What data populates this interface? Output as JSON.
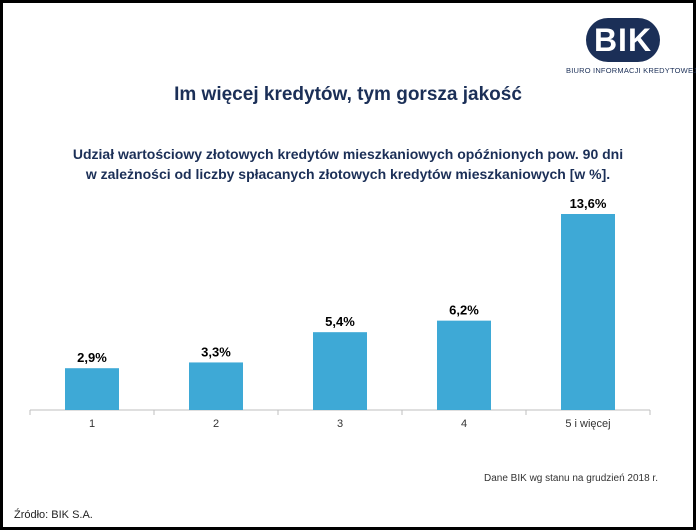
{
  "logo": {
    "text": "BIK",
    "subtitle": "BIURO INFORMACJI KREDYTOWEJ"
  },
  "headline": "Im więcej kredytów, tym gorsza jakość",
  "subtitle_line1": "Udział wartościowy złotowych kredytów mieszkaniowych opóźnionych pow. 90 dni",
  "subtitle_line2": "w zależności od liczby spłacanych złotowych kredytów mieszkaniowych [w %].",
  "note": "Dane BIK wg stanu na grudzień 2018 r.",
  "source": "Źródło: BIK S.A.",
  "colors": {
    "bar": "#3ea9d6",
    "brand": "#1b2f57",
    "axis": "#bfbfbf"
  },
  "chart_data": {
    "type": "bar",
    "title": "Udział wartościowy złotowych kredytów mieszkaniowych opóźnionych pow. 90 dni w zależności od liczby spłacanych złotowych kredytów mieszkaniowych [w %].",
    "categories": [
      "1",
      "2",
      "3",
      "4",
      "5 i więcej"
    ],
    "values": [
      2.9,
      3.3,
      5.4,
      6.2,
      13.6
    ],
    "data_labels": [
      "2,9%",
      "3,3%",
      "5,4%",
      "6,2%",
      "13,6%"
    ],
    "xlabel": "",
    "ylabel": "",
    "ylim": [
      0,
      13.6
    ],
    "grid": false,
    "legend": "none"
  }
}
